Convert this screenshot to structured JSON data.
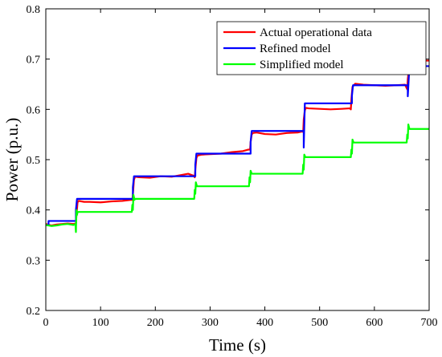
{
  "chart_data": {
    "type": "line",
    "xlabel": "Time (s)",
    "ylabel": "Power (p.u.)",
    "xlim": [
      0,
      700
    ],
    "ylim": [
      0.2,
      0.8
    ],
    "xticks": [
      0,
      100,
      200,
      300,
      400,
      500,
      600,
      700
    ],
    "yticks": [
      0.2,
      0.3,
      0.4,
      0.5,
      0.6,
      0.7,
      0.8
    ],
    "xtick_labels": [
      "0",
      "100",
      "200",
      "300",
      "400",
      "500",
      "600",
      "700"
    ],
    "ytick_labels": [
      "0.2",
      "0.3",
      "0.4",
      "0.5",
      "0.6",
      "0.7",
      "0.8"
    ],
    "grid": false,
    "legend_position": "top-right",
    "series": [
      {
        "name": "Actual operational data",
        "color": "#ff0000",
        "x": [
          0,
          10,
          20,
          30,
          40,
          50,
          55,
          56,
          58,
          60,
          70,
          80,
          100,
          120,
          140,
          155,
          158,
          159,
          161,
          163,
          170,
          190,
          210,
          230,
          250,
          260,
          270,
          272,
          273,
          275,
          277,
          285,
          300,
          320,
          340,
          360,
          370,
          373,
          374,
          376,
          378,
          385,
          400,
          420,
          440,
          460,
          468,
          470,
          471,
          473,
          475,
          480,
          500,
          520,
          540,
          555,
          557,
          558,
          560,
          565,
          580,
          600,
          620,
          640,
          656,
          660,
          661,
          663,
          666,
          670,
          680,
          690,
          700
        ],
        "y": [
          0.372,
          0.369,
          0.371,
          0.372,
          0.373,
          0.372,
          0.373,
          0.39,
          0.415,
          0.418,
          0.416,
          0.416,
          0.415,
          0.417,
          0.418,
          0.42,
          0.42,
          0.43,
          0.46,
          0.466,
          0.465,
          0.464,
          0.467,
          0.466,
          0.47,
          0.472,
          0.468,
          0.465,
          0.48,
          0.503,
          0.508,
          0.51,
          0.511,
          0.512,
          0.515,
          0.517,
          0.52,
          0.52,
          0.535,
          0.55,
          0.553,
          0.554,
          0.551,
          0.55,
          0.553,
          0.554,
          0.556,
          0.555,
          0.58,
          0.598,
          0.603,
          0.602,
          0.601,
          0.6,
          0.601,
          0.602,
          0.6,
          0.62,
          0.645,
          0.651,
          0.649,
          0.648,
          0.647,
          0.648,
          0.649,
          0.64,
          0.66,
          0.68,
          0.694,
          0.695,
          0.696,
          0.697,
          0.697
        ]
      },
      {
        "name": "Refined model",
        "color": "#0000ff",
        "x": [
          0,
          5,
          5,
          55,
          55,
          57,
          159,
          159,
          161,
          273,
          273,
          275,
          374,
          374,
          376,
          471,
          471,
          473,
          559,
          559,
          561,
          661,
          661,
          664,
          700
        ],
        "y": [
          0.37,
          0.37,
          0.378,
          0.378,
          0.4,
          0.422,
          0.422,
          0.445,
          0.467,
          0.467,
          0.49,
          0.512,
          0.512,
          0.535,
          0.557,
          0.557,
          0.524,
          0.612,
          0.612,
          0.627,
          0.648,
          0.648,
          0.626,
          0.686,
          0.686
        ]
      },
      {
        "name": "Simplified model",
        "color": "#00ff00",
        "x": [
          0,
          5,
          10,
          20,
          30,
          40,
          50,
          54,
          55,
          56,
          57,
          58,
          60,
          157,
          158,
          159,
          160,
          162,
          163,
          271,
          272,
          273,
          274,
          276,
          371,
          372,
          373,
          374,
          376,
          469,
          470,
          471,
          472,
          474,
          557,
          558,
          559,
          560,
          562,
          659,
          660,
          661,
          662,
          664,
          700
        ],
        "y": [
          0.37,
          0.369,
          0.368,
          0.369,
          0.371,
          0.372,
          0.37,
          0.372,
          0.356,
          0.4,
          0.39,
          0.396,
          0.396,
          0.396,
          0.41,
          0.4,
          0.43,
          0.42,
          0.422,
          0.422,
          0.44,
          0.432,
          0.455,
          0.447,
          0.447,
          0.465,
          0.455,
          0.478,
          0.472,
          0.472,
          0.49,
          0.48,
          0.51,
          0.505,
          0.505,
          0.52,
          0.512,
          0.54,
          0.534,
          0.534,
          0.55,
          0.542,
          0.57,
          0.561,
          0.561
        ]
      }
    ]
  }
}
